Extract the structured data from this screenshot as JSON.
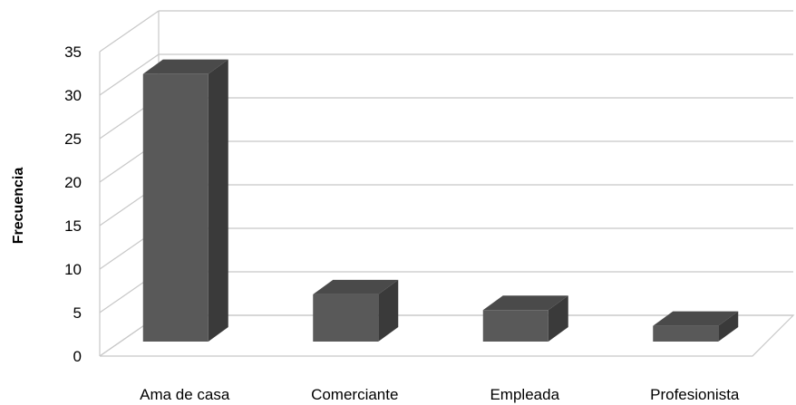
{
  "chart_data": {
    "type": "bar",
    "style": "3d-column",
    "title": "",
    "xlabel": "",
    "ylabel": "Frecuencia",
    "categories": [
      "Ama de casa",
      "Comerciante",
      "Empleada",
      "Profesionista"
    ],
    "values": [
      34,
      6,
      4,
      2
    ],
    "ylim": [
      0,
      35
    ],
    "yticks": [
      "0",
      "5",
      "10",
      "15",
      "20",
      "25",
      "30",
      "35"
    ],
    "grid": true,
    "legend": "none",
    "colors": {
      "bar_front": "#595959",
      "bar_side": "#3a3a3a",
      "bar_top": "#4a4a4a",
      "gridline": "#c8c8c8"
    }
  }
}
